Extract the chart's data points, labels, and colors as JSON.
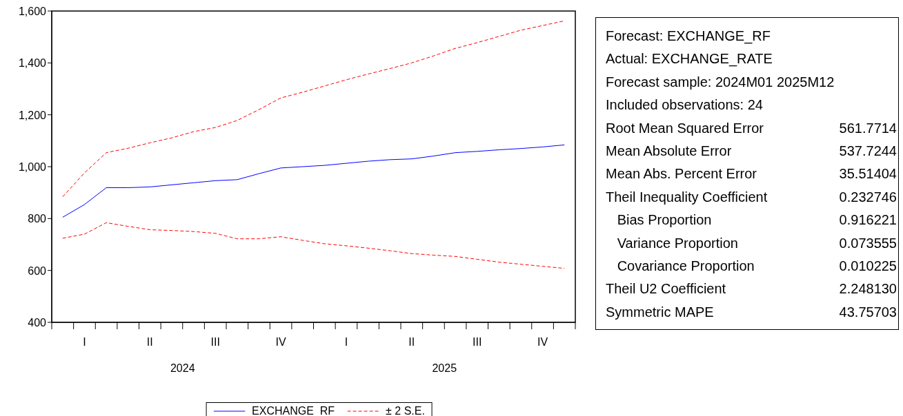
{
  "chart_data": {
    "type": "line",
    "categories": [
      null,
      "I",
      null,
      null,
      "II",
      null,
      null,
      "III",
      null,
      null,
      "IV",
      null,
      null,
      "I",
      null,
      null,
      "II",
      null,
      null,
      "III",
      null,
      null,
      "IV",
      null
    ],
    "series": [
      {
        "name": "EXCHANGE_RF",
        "color": "#0000ff",
        "line_style": "solid",
        "values": [
          805,
          854,
          919,
          919,
          922,
          930,
          938,
          946,
          950,
          973,
          995,
          1000,
          1005,
          1013,
          1021,
          1027,
          1030,
          1041,
          1054,
          1059,
          1065,
          1070,
          1076,
          1084
        ]
      },
      {
        "name": "± 2 S.E.",
        "color": "#ff0000",
        "line_style": "dashed",
        "values": [
          884,
          976,
          1054,
          1071,
          1092,
          1111,
          1135,
          1151,
          1178,
          1220,
          1265,
          1287,
          1311,
          1335,
          1357,
          1378,
          1400,
          1427,
          1456,
          1478,
          1502,
          1526,
          1544,
          1562
        ]
      },
      {
        "color": "#ff0000",
        "line_style": "dashed",
        "values": [
          724,
          740,
          784,
          770,
          757,
          754,
          750,
          743,
          722,
          722,
          730,
          716,
          703,
          695,
          686,
          676,
          665,
          659,
          654,
          643,
          632,
          624,
          616,
          608
        ]
      }
    ],
    "ylim": [
      400,
      1600
    ],
    "yticks": [
      400,
      600,
      800,
      {
        "value": 1000,
        "label": "1,000"
      },
      {
        "value": 1200,
        "label": "1,200"
      },
      {
        "value": 1400,
        "label": "1,400"
      },
      {
        "value": 1600,
        "label": "1,600"
      }
    ],
    "grid": false,
    "marker": "none",
    "legend": "bottom",
    "annotations": [
      "2024",
      "2025",
      "Forecast: EXCHANGE_RF",
      "Actual: EXCHANGE_RATE",
      "Forecast sample: 2024M01 2025M12",
      "Included observations: 24",
      "Root Mean Squared Error\t561.7714",
      "Mean Absolute Error\t537.7244",
      "Mean Abs. Percent Error\t35.51404",
      "Theil Inequality Coefficient\t0.232746",
      "   Bias Proportion\t0.916221",
      "   Variance Proportion\t0.073555",
      "   Covariance Proportion\t0.010225",
      "Theil U2 Coefficient\t2.248130",
      "Symmetric MAPE\t43.75703"
    ]
  }
}
